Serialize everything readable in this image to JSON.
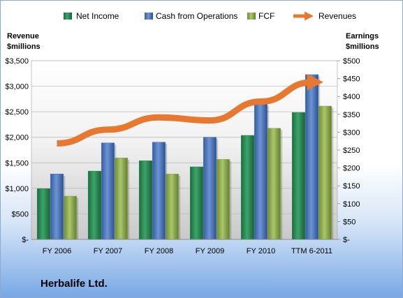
{
  "chart_data": {
    "type": "bar",
    "categories": [
      "FY 2006",
      "FY 2007",
      "FY 2008",
      "FY 2009",
      "FY 2010",
      "TTM 6-2011"
    ],
    "series": [
      {
        "name": "Net Income",
        "axis": "right",
        "color": "#2e8b57",
        "values": [
          142,
          191,
          220,
          203,
          291,
          355
        ]
      },
      {
        "name": "Cash from Operations",
        "axis": "right",
        "color": "#4f7ac0",
        "values": [
          183,
          270,
          272,
          286,
          379,
          461
        ]
      },
      {
        "name": "FCF",
        "axis": "right",
        "color": "#92b150",
        "values": [
          121,
          228,
          183,
          224,
          311,
          373
        ]
      },
      {
        "name": "Revenues",
        "axis": "left",
        "type": "line",
        "color": "#e8782f",
        "values": [
          1880,
          2150,
          2390,
          2330,
          2700,
          3080
        ]
      }
    ],
    "y_left": {
      "label": [
        "Revenue",
        "$millions"
      ],
      "ylim": [
        0,
        3500
      ],
      "ticks": [
        "$-",
        "$500",
        "$1,000",
        "$1,500",
        "$2,000",
        "$2,500",
        "$3,000",
        "$3,500"
      ]
    },
    "y_right": {
      "label": [
        "Earnings",
        "$millions"
      ],
      "ylim": [
        0,
        500
      ],
      "ticks": [
        "$-",
        "$50",
        "$100",
        "$150",
        "$200",
        "$250",
        "$300",
        "$350",
        "$400",
        "$450",
        "$500"
      ]
    },
    "grid": true,
    "legend": "top"
  },
  "company": "Herbalife Ltd."
}
